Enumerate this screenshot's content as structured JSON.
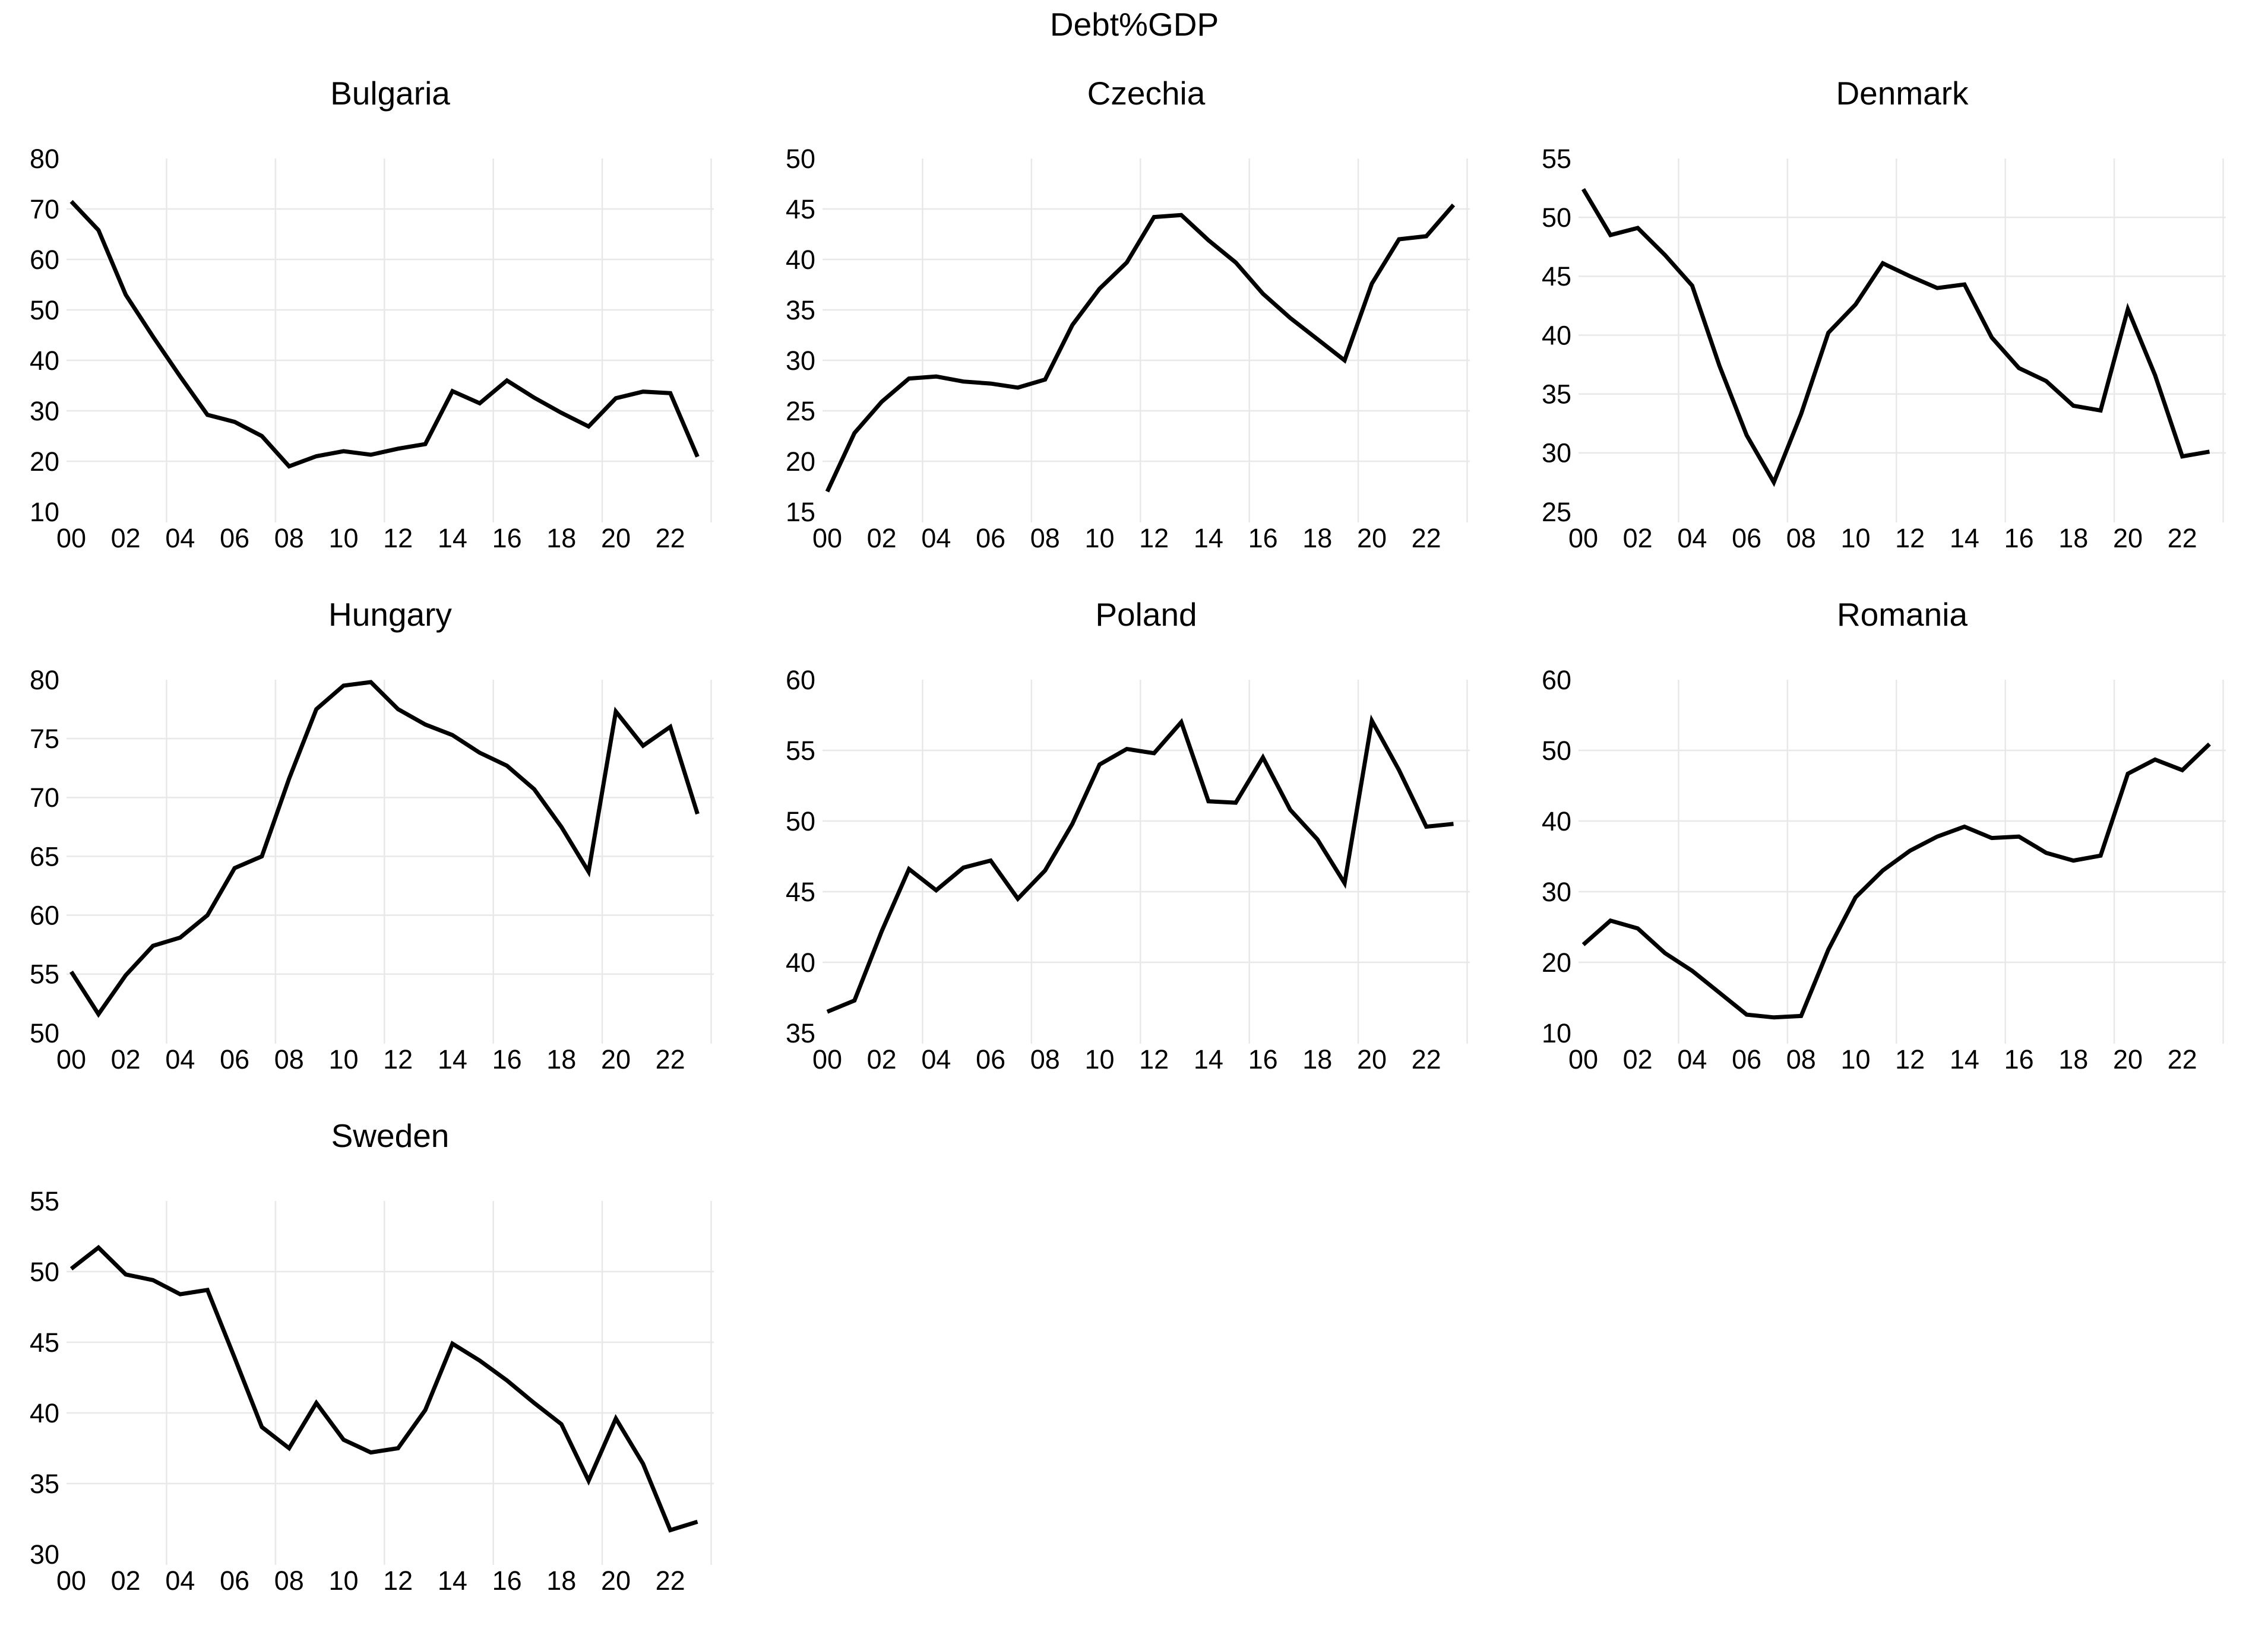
{
  "figure_title": "Debt%GDP",
  "axes": {
    "x_years_start": 2000,
    "x_years_end": 2023,
    "x_tick_labels": [
      "00",
      "02",
      "04",
      "06",
      "08",
      "10",
      "12",
      "14",
      "16",
      "18",
      "20",
      "22"
    ],
    "x_tick_year_offsets": [
      0,
      2,
      4,
      6,
      8,
      10,
      12,
      14,
      16,
      18,
      20,
      22
    ],
    "x_gridline_year_offsets": [
      3.5,
      7.5,
      11.5,
      15.5,
      19.5,
      23.5
    ],
    "grid": "on",
    "legend": "none"
  },
  "colors": {
    "line": "#000000",
    "gridline": "#e8e8e8",
    "text": "#000000",
    "background": "#ffffff"
  },
  "chart_data": [
    {
      "type": "line",
      "title": "Bulgaria",
      "xlabel": "",
      "ylabel": "",
      "ylim": [
        10,
        80
      ],
      "yticks": [
        10,
        20,
        30,
        40,
        50,
        60,
        70,
        80
      ],
      "x": [
        2000,
        2001,
        2002,
        2003,
        2004,
        2005,
        2006,
        2007,
        2008,
        2009,
        2010,
        2011,
        2012,
        2013,
        2014,
        2015,
        2016,
        2017,
        2018,
        2019,
        2020,
        2021,
        2022,
        2023
      ],
      "values": [
        71.5,
        65.8,
        53.0,
        44.7,
        36.8,
        29.2,
        27.8,
        25.0,
        19.0,
        21.0,
        22.0,
        21.3,
        22.5,
        23.4,
        33.9,
        31.5,
        36.0,
        32.6,
        29.6,
        26.9,
        32.5,
        33.8,
        33.5,
        20.9
      ]
    },
    {
      "type": "line",
      "title": "Czechia",
      "xlabel": "",
      "ylabel": "",
      "ylim": [
        15,
        50
      ],
      "yticks": [
        15,
        20,
        25,
        30,
        35,
        40,
        45,
        50
      ],
      "x": [
        2000,
        2001,
        2002,
        2003,
        2004,
        2005,
        2006,
        2007,
        2008,
        2009,
        2010,
        2011,
        2012,
        2013,
        2014,
        2015,
        2016,
        2017,
        2018,
        2019,
        2020,
        2021,
        2022,
        2023
      ],
      "values": [
        17.0,
        22.8,
        25.9,
        28.2,
        28.4,
        27.9,
        27.7,
        27.3,
        28.1,
        33.5,
        37.1,
        39.7,
        44.2,
        44.4,
        41.9,
        39.7,
        36.6,
        34.2,
        32.1,
        30.0,
        37.6,
        42.0,
        42.3,
        45.4
      ]
    },
    {
      "type": "line",
      "title": "Denmark",
      "xlabel": "",
      "ylabel": "",
      "ylim": [
        25,
        55
      ],
      "yticks": [
        25,
        30,
        35,
        40,
        45,
        50,
        55
      ],
      "x": [
        2000,
        2001,
        2002,
        2003,
        2004,
        2005,
        2006,
        2007,
        2008,
        2009,
        2010,
        2011,
        2012,
        2013,
        2014,
        2015,
        2016,
        2017,
        2018,
        2019,
        2020,
        2021,
        2022,
        2023
      ],
      "values": [
        52.4,
        48.5,
        49.1,
        46.8,
        44.2,
        37.4,
        31.5,
        27.5,
        33.3,
        40.2,
        42.6,
        46.1,
        45.0,
        44.0,
        44.3,
        39.8,
        37.2,
        36.1,
        34.0,
        33.6,
        42.2,
        36.6,
        29.7,
        30.1
      ]
    },
    {
      "type": "line",
      "title": "Hungary",
      "xlabel": "",
      "ylabel": "",
      "ylim": [
        50,
        80
      ],
      "yticks": [
        50,
        55,
        60,
        65,
        70,
        75,
        80
      ],
      "x": [
        2000,
        2001,
        2002,
        2003,
        2004,
        2005,
        2006,
        2007,
        2008,
        2009,
        2010,
        2011,
        2012,
        2013,
        2014,
        2015,
        2016,
        2017,
        2018,
        2019,
        2020,
        2021,
        2022,
        2023
      ],
      "values": [
        55.2,
        51.6,
        54.9,
        57.4,
        58.1,
        60.0,
        64.0,
        65.0,
        71.6,
        77.5,
        79.5,
        79.8,
        77.5,
        76.2,
        75.3,
        73.8,
        72.7,
        70.7,
        67.5,
        63.7,
        77.3,
        74.4,
        76.0,
        68.6
      ]
    },
    {
      "type": "line",
      "title": "Poland",
      "xlabel": "",
      "ylabel": "",
      "ylim": [
        35,
        60
      ],
      "yticks": [
        35,
        40,
        45,
        50,
        55,
        60
      ],
      "x": [
        2000,
        2001,
        2002,
        2003,
        2004,
        2005,
        2006,
        2007,
        2008,
        2009,
        2010,
        2011,
        2012,
        2013,
        2014,
        2015,
        2016,
        2017,
        2018,
        2019,
        2020,
        2021,
        2022,
        2023
      ],
      "values": [
        36.5,
        37.3,
        42.2,
        46.6,
        45.1,
        46.7,
        47.2,
        44.5,
        46.5,
        49.8,
        54.0,
        55.1,
        54.8,
        57.0,
        51.4,
        51.3,
        54.5,
        50.8,
        48.7,
        45.6,
        57.1,
        53.6,
        49.6,
        49.8
      ]
    },
    {
      "type": "line",
      "title": "Romania",
      "xlabel": "",
      "ylabel": "",
      "ylim": [
        10,
        60
      ],
      "yticks": [
        10,
        20,
        30,
        40,
        50,
        60
      ],
      "x": [
        2000,
        2001,
        2002,
        2003,
        2004,
        2005,
        2006,
        2007,
        2008,
        2009,
        2010,
        2011,
        2012,
        2013,
        2014,
        2015,
        2016,
        2017,
        2018,
        2019,
        2020,
        2021,
        2022,
        2023
      ],
      "values": [
        22.5,
        25.9,
        24.8,
        21.3,
        18.8,
        15.7,
        12.6,
        12.2,
        12.4,
        21.8,
        29.2,
        33.0,
        35.8,
        37.8,
        39.2,
        37.6,
        37.8,
        35.5,
        34.4,
        35.1,
        46.7,
        48.7,
        47.2,
        50.9
      ]
    },
    {
      "type": "line",
      "title": "Sweden",
      "xlabel": "",
      "ylabel": "",
      "ylim": [
        30,
        55
      ],
      "yticks": [
        30,
        35,
        40,
        45,
        50,
        55
      ],
      "x": [
        2000,
        2001,
        2002,
        2003,
        2004,
        2005,
        2006,
        2007,
        2008,
        2009,
        2010,
        2011,
        2012,
        2013,
        2014,
        2015,
        2016,
        2017,
        2018,
        2019,
        2020,
        2021,
        2022,
        2023
      ],
      "values": [
        50.2,
        51.7,
        49.8,
        49.4,
        48.4,
        48.7,
        43.9,
        39.0,
        37.5,
        40.7,
        38.1,
        37.2,
        37.5,
        40.2,
        44.9,
        43.7,
        42.3,
        40.7,
        39.2,
        35.2,
        39.6,
        36.4,
        31.7,
        32.3
      ]
    }
  ]
}
